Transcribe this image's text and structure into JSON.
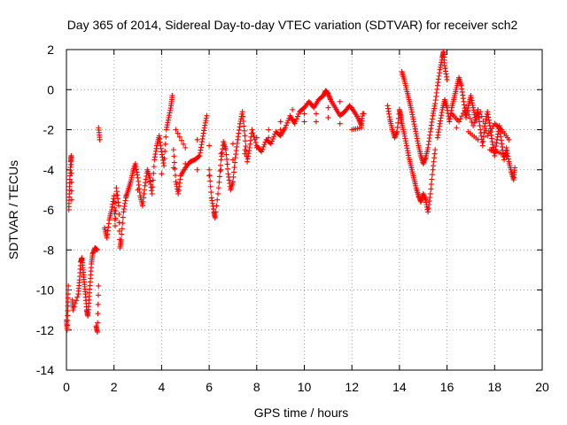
{
  "chart_data": {
    "type": "scatter",
    "title": "Day 365 of 2014, Sidereal Day-to-day VTEC variation (SDTVAR) for receiver sch2",
    "xlabel": "GPS time / hours",
    "ylabel": "SDTVAR / TECUs",
    "xlim": [
      0,
      20
    ],
    "ylim": [
      -14,
      2
    ],
    "xticks": [
      "0",
      "2",
      "4",
      "6",
      "8",
      "10",
      "12",
      "14",
      "16",
      "18",
      "20"
    ],
    "yticks": [
      "2",
      "0",
      "-2",
      "-4",
      "-6",
      "-8",
      "-10",
      "-12",
      "-14"
    ],
    "grid": true,
    "marker": "+",
    "color": "#ff0000",
    "series": [
      {
        "name": "sch2",
        "points": [
          [
            0.0,
            -11.5
          ],
          [
            0.03,
            -12.0
          ],
          [
            0.06,
            -10.8
          ],
          [
            0.08,
            -9.8
          ],
          [
            0.1,
            -6.0
          ],
          [
            0.12,
            -5.2
          ],
          [
            0.15,
            -4.3
          ],
          [
            0.18,
            -3.6
          ],
          [
            0.2,
            -3.3
          ],
          [
            0.22,
            -5.5
          ],
          [
            0.25,
            -10.5
          ],
          [
            0.28,
            -11.0
          ],
          [
            0.5,
            -10.2
          ],
          [
            0.55,
            -9.5
          ],
          [
            0.6,
            -8.6
          ],
          [
            0.65,
            -8.4
          ],
          [
            0.7,
            -9.0
          ],
          [
            0.75,
            -9.6
          ],
          [
            0.8,
            -10.2
          ],
          [
            0.85,
            -11.0
          ],
          [
            0.9,
            -11.3
          ],
          [
            0.95,
            -10.5
          ],
          [
            1.0,
            -9.6
          ],
          [
            1.05,
            -8.7
          ],
          [
            1.1,
            -8.2
          ],
          [
            1.2,
            -7.9
          ],
          [
            1.3,
            -8.0
          ],
          [
            1.25,
            -11.8
          ],
          [
            1.3,
            -12.1
          ],
          [
            1.35,
            -9.8
          ],
          [
            1.35,
            -1.9
          ],
          [
            1.4,
            -2.5
          ],
          [
            1.6,
            -6.9
          ],
          [
            1.7,
            -7.4
          ],
          [
            1.8,
            -6.5
          ],
          [
            1.9,
            -6.0
          ],
          [
            2.0,
            -5.3
          ],
          [
            2.05,
            -6.8
          ],
          [
            2.1,
            -4.9
          ],
          [
            2.2,
            -5.8
          ],
          [
            2.25,
            -7.9
          ],
          [
            2.3,
            -7.5
          ],
          [
            2.4,
            -6.1
          ],
          [
            2.5,
            -5.4
          ],
          [
            2.6,
            -5.0
          ],
          [
            2.7,
            -4.6
          ],
          [
            2.8,
            -4.1
          ],
          [
            2.9,
            -3.7
          ],
          [
            3.0,
            -4.4
          ],
          [
            3.1,
            -5.3
          ],
          [
            3.2,
            -5.8
          ],
          [
            3.3,
            -4.8
          ],
          [
            3.4,
            -4.0
          ],
          [
            3.5,
            -4.4
          ],
          [
            3.6,
            -5.2
          ],
          [
            3.7,
            -3.5
          ],
          [
            3.8,
            -2.8
          ],
          [
            3.9,
            -2.3
          ],
          [
            4.0,
            -3.1
          ],
          [
            4.1,
            -3.8
          ],
          [
            4.2,
            -2.0
          ],
          [
            4.3,
            -1.4
          ],
          [
            4.4,
            -0.8
          ],
          [
            4.45,
            -0.3
          ],
          [
            4.5,
            -3.0
          ],
          [
            4.6,
            -4.6
          ],
          [
            4.7,
            -5.2
          ],
          [
            4.8,
            -4.3
          ],
          [
            5.0,
            -3.9
          ],
          [
            5.2,
            -3.6
          ],
          [
            5.4,
            -3.5
          ],
          [
            5.6,
            -3.3
          ],
          [
            5.7,
            -2.6
          ],
          [
            5.8,
            -1.9
          ],
          [
            5.9,
            -1.3
          ],
          [
            6.0,
            -4.0
          ],
          [
            6.1,
            -5.4
          ],
          [
            6.2,
            -6.1
          ],
          [
            6.25,
            -6.4
          ],
          [
            6.4,
            -4.9
          ],
          [
            6.5,
            -3.5
          ],
          [
            6.6,
            -2.6
          ],
          [
            6.7,
            -3.0
          ],
          [
            6.8,
            -4.2
          ],
          [
            6.9,
            -5.0
          ],
          [
            7.0,
            -4.6
          ],
          [
            7.1,
            -3.4
          ],
          [
            7.2,
            -2.5
          ],
          [
            7.3,
            -1.7
          ],
          [
            7.4,
            -1.1
          ],
          [
            7.5,
            -2.3
          ],
          [
            7.6,
            -3.6
          ],
          [
            7.7,
            -2.9
          ],
          [
            7.8,
            -2.0
          ],
          [
            8.0,
            -2.8
          ],
          [
            8.2,
            -3.1
          ],
          [
            8.4,
            -2.5
          ],
          [
            8.6,
            -2.7
          ],
          [
            8.8,
            -2.1
          ],
          [
            9.0,
            -2.3
          ],
          [
            9.2,
            -1.9
          ],
          [
            9.4,
            -1.3
          ],
          [
            9.6,
            -1.7
          ],
          [
            9.8,
            -1.1
          ],
          [
            10.0,
            -0.9
          ],
          [
            10.2,
            -0.6
          ],
          [
            10.4,
            -0.9
          ],
          [
            10.6,
            -0.5
          ],
          [
            10.8,
            -0.3
          ],
          [
            10.9,
            -0.05
          ],
          [
            11.0,
            -0.2
          ],
          [
            11.1,
            -0.5
          ],
          [
            11.3,
            -0.9
          ],
          [
            11.5,
            -1.3
          ],
          [
            11.7,
            -1.1
          ],
          [
            11.9,
            -0.8
          ],
          [
            12.1,
            -1.1
          ],
          [
            12.3,
            -1.5
          ],
          [
            12.4,
            -1.8
          ],
          [
            12.45,
            -1.2
          ],
          [
            4.6,
            -2.0
          ],
          [
            5.0,
            -2.9
          ],
          [
            5.5,
            -2.5
          ],
          [
            6.0,
            -2.8
          ],
          [
            6.5,
            -3.2
          ],
          [
            7.0,
            -2.7
          ],
          [
            7.5,
            -3.0
          ],
          [
            8.0,
            -2.4
          ],
          [
            8.5,
            -2.0
          ],
          [
            9.0,
            -1.6
          ],
          [
            9.5,
            -1.0
          ],
          [
            10.0,
            -1.2
          ],
          [
            10.5,
            -1.6
          ],
          [
            11.0,
            -1.4
          ],
          [
            11.5,
            -1.7
          ],
          [
            12.0,
            -2.0
          ],
          [
            12.4,
            -1.9
          ],
          [
            2.5,
            -5.3
          ],
          [
            3.0,
            -5.0
          ],
          [
            3.5,
            -4.6
          ],
          [
            4.0,
            -4.2
          ],
          [
            4.5,
            -3.9
          ],
          [
            5.0,
            -3.7
          ],
          [
            5.5,
            -4.0
          ],
          [
            6.0,
            -4.3
          ],
          [
            6.5,
            -4.0
          ],
          [
            7.0,
            -3.5
          ],
          [
            7.5,
            -3.2
          ],
          [
            8.0,
            -2.9
          ],
          [
            8.5,
            -2.4
          ],
          [
            9.0,
            -2.0
          ],
          [
            9.5,
            -1.5
          ],
          [
            10.0,
            -1.6
          ],
          [
            10.5,
            -1.2
          ],
          [
            11.0,
            -0.9
          ],
          [
            11.5,
            -0.6
          ],
          [
            12.0,
            -0.9
          ],
          [
            12.5,
            -1.2
          ],
          [
            13.5,
            -0.8
          ],
          [
            13.6,
            -1.5
          ],
          [
            13.7,
            -2.0
          ],
          [
            13.8,
            -2.4
          ],
          [
            13.9,
            -2.1
          ],
          [
            14.0,
            -1.0
          ],
          [
            14.05,
            -1.3
          ],
          [
            14.1,
            -1.7
          ],
          [
            14.2,
            -2.2
          ],
          [
            14.3,
            -2.8
          ],
          [
            14.4,
            -3.4
          ],
          [
            14.5,
            -3.9
          ],
          [
            14.6,
            -4.4
          ],
          [
            14.7,
            -4.9
          ],
          [
            14.8,
            -5.3
          ],
          [
            14.9,
            -5.6
          ],
          [
            15.0,
            -5.2
          ],
          [
            15.1,
            -5.5
          ],
          [
            15.2,
            -6.1
          ],
          [
            15.3,
            -5.2
          ],
          [
            15.4,
            -4.0
          ],
          [
            15.5,
            -3.0
          ],
          [
            14.1,
            0.9
          ],
          [
            14.2,
            0.5
          ],
          [
            14.3,
            0.0
          ],
          [
            14.4,
            -0.5
          ],
          [
            14.5,
            -1.0
          ],
          [
            14.6,
            -1.6
          ],
          [
            14.7,
            -2.2
          ],
          [
            14.8,
            -2.8
          ],
          [
            14.9,
            -3.3
          ],
          [
            15.0,
            -3.7
          ],
          [
            15.1,
            -3.4
          ],
          [
            15.2,
            -2.9
          ],
          [
            15.3,
            -2.1
          ],
          [
            15.4,
            -1.3
          ],
          [
            15.5,
            -0.7
          ],
          [
            15.6,
            0.2
          ],
          [
            15.7,
            1.0
          ],
          [
            15.8,
            1.6
          ],
          [
            15.85,
            1.9
          ],
          [
            15.9,
            1.2
          ],
          [
            16.0,
            0.5
          ],
          [
            15.6,
            -2.4
          ],
          [
            15.7,
            -1.7
          ],
          [
            15.8,
            -1.0
          ],
          [
            15.9,
            -0.5
          ],
          [
            16.0,
            -0.9
          ],
          [
            16.1,
            -1.6
          ],
          [
            16.2,
            -0.9
          ],
          [
            16.3,
            -0.4
          ],
          [
            16.4,
            0.1
          ],
          [
            16.5,
            0.6
          ],
          [
            16.6,
            0.2
          ],
          [
            16.7,
            -0.6
          ],
          [
            16.8,
            -1.4
          ],
          [
            16.9,
            -0.8
          ],
          [
            17.0,
            -0.3
          ],
          [
            17.1,
            -0.9
          ],
          [
            17.2,
            -1.5
          ],
          [
            17.3,
            -1.0
          ],
          [
            17.4,
            -2.0
          ],
          [
            17.5,
            -2.8
          ],
          [
            17.6,
            -1.7
          ],
          [
            17.7,
            -1.1
          ],
          [
            17.8,
            -1.8
          ],
          [
            17.9,
            -2.6
          ],
          [
            18.0,
            -3.3
          ],
          [
            18.1,
            -2.5
          ],
          [
            18.2,
            -1.8
          ],
          [
            18.3,
            -2.7
          ],
          [
            18.4,
            -3.5
          ],
          [
            18.5,
            -2.9
          ],
          [
            18.6,
            -3.6
          ],
          [
            18.7,
            -4.1
          ],
          [
            18.8,
            -4.5
          ],
          [
            18.85,
            -3.9
          ],
          [
            16.2,
            -1.2
          ],
          [
            16.5,
            -1.6
          ],
          [
            16.8,
            -0.9
          ],
          [
            17.1,
            -1.8
          ],
          [
            17.4,
            -1.1
          ],
          [
            17.7,
            -2.3
          ],
          [
            18.0,
            -1.7
          ],
          [
            18.3,
            -2.0
          ],
          [
            18.6,
            -2.5
          ],
          [
            16.4,
            -1.9
          ],
          [
            16.9,
            -2.1
          ],
          [
            17.3,
            -2.5
          ],
          [
            17.8,
            -3.0
          ],
          [
            18.1,
            -3.1
          ],
          [
            18.5,
            -3.3
          ]
        ]
      }
    ]
  }
}
